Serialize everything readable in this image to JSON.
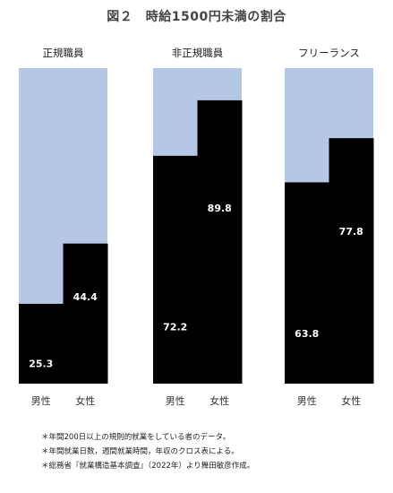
{
  "chart_data": {
    "type": "bar",
    "title": "図２　時給1500円未満の割合",
    "ylim": [
      0,
      100
    ],
    "grid": false,
    "legend": "none",
    "colors": {
      "share": "#000000",
      "remainder": "#b4c7e7"
    },
    "groups": [
      {
        "label": "正規職員",
        "categories": [
          "男性",
          "女性"
        ],
        "values": [
          25.3,
          44.4
        ]
      },
      {
        "label": "非正規職員",
        "categories": [
          "男性",
          "女性"
        ],
        "values": [
          72.2,
          89.8
        ]
      },
      {
        "label": "フリーランス",
        "categories": [
          "男性",
          "女性"
        ],
        "values": [
          63.8,
          77.8
        ]
      }
    ]
  },
  "notes": [
    "＊年間200日以上の規則的就業をしている者のデータ。",
    "＊年間就業日数，週間就業時間，年収のクロス表による。",
    "＊総務省『就業構造基本調査』（2022年）より舞田敏彦作成。"
  ]
}
